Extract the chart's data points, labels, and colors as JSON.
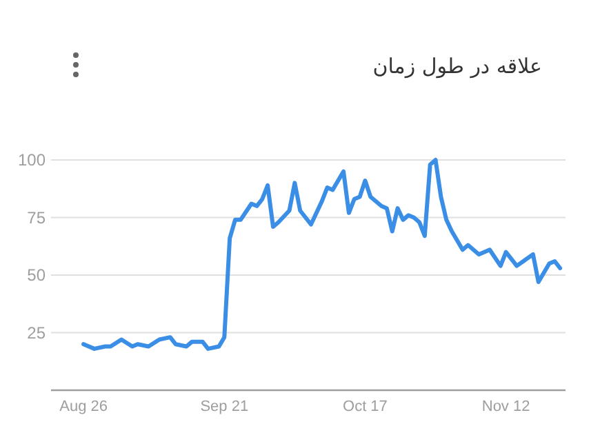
{
  "chart_data": {
    "type": "line",
    "title": "علاقه در طول زمان",
    "color": "#3a8ee6",
    "grid": "y",
    "x": [
      "--08-26",
      "--08-28",
      "--08-30",
      "--08-31",
      "--09-02",
      "--09-04",
      "--09-05",
      "--09-07",
      "--09-09",
      "--09-11",
      "--09-12",
      "--09-14",
      "--09-15",
      "--09-17",
      "--09-18",
      "--09-20",
      "--09-21",
      "--09-22",
      "--09-23",
      "--09-24",
      "--09-26",
      "--09-27",
      "--09-28",
      "--09-29",
      "--09-30",
      "--10-01",
      "--10-03",
      "--10-04",
      "--10-05",
      "--10-07",
      "--10-09",
      "--10-10",
      "--10-11",
      "--10-13",
      "--10-14",
      "--10-15",
      "--10-16",
      "--10-17",
      "--10-18",
      "--10-20",
      "--10-21",
      "--10-22",
      "--10-23",
      "--10-24",
      "--10-25",
      "--10-26",
      "--10-27",
      "--10-28",
      "--10-29",
      "--10-30",
      "--10-31",
      "--11-01",
      "--11-02",
      "--11-04",
      "--11-05",
      "--11-07",
      "--11-09",
      "--11-11",
      "--11-12",
      "--11-14",
      "--11-17",
      "--11-18",
      "--11-20",
      "--11-21",
      "--11-22"
    ],
    "values": [
      20,
      18,
      19,
      19,
      22,
      19,
      20,
      19,
      22,
      23,
      20,
      19,
      21,
      21,
      18,
      19,
      23,
      66,
      74,
      74,
      81,
      80,
      83,
      89,
      71,
      73,
      78,
      90,
      78,
      72,
      82,
      88,
      87,
      95,
      77,
      83,
      84,
      91,
      84,
      80,
      79,
      69,
      79,
      74,
      76,
      75,
      73,
      67,
      98,
      100,
      84,
      74,
      69,
      61,
      63,
      59,
      61,
      54,
      60,
      54,
      59,
      47,
      55,
      56,
      53
    ],
    "xlim": [
      "--08-20",
      "--11-23"
    ],
    "xticks": [
      {
        "value": "--08-26",
        "label": "Aug 26"
      },
      {
        "value": "--09-21",
        "label": "Sep 21"
      },
      {
        "value": "--10-17",
        "label": "Oct 17"
      },
      {
        "value": "--11-12",
        "label": "Nov 12"
      }
    ],
    "ylim": [
      0,
      100
    ],
    "yticks": [
      25,
      50,
      75,
      100
    ]
  }
}
